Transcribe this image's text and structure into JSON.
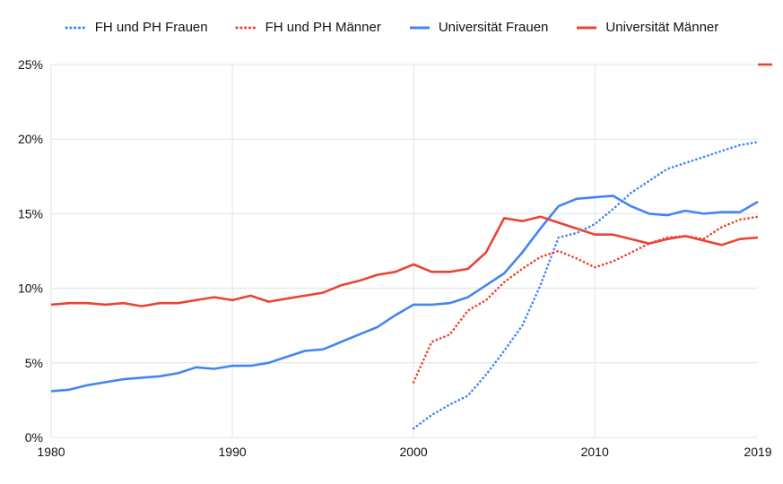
{
  "chart_data": {
    "type": "line",
    "title": "",
    "xlabel": "",
    "ylabel": "",
    "legend_position": "top",
    "grid": true,
    "background": "#ffffff",
    "colors": {
      "blue": "#4285f4",
      "red": "#ea4335",
      "gridline": "#e3e3e3",
      "axis_text": "#111111"
    },
    "x_axis": {
      "range": [
        1980,
        2019
      ],
      "ticks": [
        "1980",
        "1990",
        "2000",
        "2010",
        "2019"
      ],
      "tick_values": [
        1980,
        1990,
        2000,
        2010,
        2019
      ]
    },
    "y_axis": {
      "range": [
        0,
        25
      ],
      "unit": "%",
      "ticks": [
        "0%",
        "5%",
        "10%",
        "15%",
        "20%",
        "25%"
      ],
      "tick_values": [
        0,
        5,
        10,
        15,
        20,
        25
      ]
    },
    "vertical_gridline_years": [
      1990,
      2000,
      2010
    ],
    "series": [
      {
        "id": "fh-und-ph-frauen",
        "name": "FH und PH Frauen",
        "color": "#4285f4",
        "style": "dotted",
        "x_start": 2000,
        "x_step": 1,
        "values": [
          0.6,
          1.5,
          2.2,
          2.8,
          4.2,
          5.8,
          7.5,
          10.2,
          13.4,
          13.7,
          14.3,
          15.3,
          16.4,
          17.2,
          18.0,
          18.4,
          18.8,
          19.2,
          19.6,
          19.8
        ]
      },
      {
        "id": "fh-und-ph-maenner",
        "name": "FH und PH Männer",
        "color": "#ea4335",
        "style": "dotted",
        "x_start": 2000,
        "x_step": 1,
        "values": [
          3.7,
          6.4,
          6.9,
          8.5,
          9.2,
          10.4,
          11.3,
          12.1,
          12.5,
          12.0,
          11.4,
          11.8,
          12.4,
          13.0,
          13.4,
          13.5,
          13.3,
          14.1,
          14.6,
          14.8
        ]
      },
      {
        "id": "universitaet-frauen",
        "name": "Universität Frauen",
        "color": "#4285f4",
        "style": "solid",
        "x_start": 1980,
        "x_step": 1,
        "values": [
          3.1,
          3.2,
          3.5,
          3.7,
          3.9,
          4.0,
          4.1,
          4.3,
          4.7,
          4.6,
          4.8,
          4.8,
          5.0,
          5.4,
          5.8,
          5.9,
          6.4,
          6.9,
          7.4,
          8.2,
          8.9,
          8.9,
          9.0,
          9.4,
          10.2,
          11.0,
          12.4,
          14.0,
          15.5,
          16.0,
          16.1,
          16.2,
          15.5,
          15.0,
          14.9,
          15.2,
          15.0,
          15.1,
          15.1,
          15.8
        ]
      },
      {
        "id": "universitaet-maenner",
        "name": "Universität Männer",
        "color": "#ea4335",
        "style": "solid",
        "x_start": 1980,
        "x_step": 1,
        "values": [
          8.9,
          9.0,
          9.0,
          8.9,
          9.0,
          8.8,
          9.0,
          9.0,
          9.2,
          9.4,
          9.2,
          9.5,
          9.1,
          9.3,
          9.5,
          9.7,
          10.2,
          10.5,
          10.9,
          11.1,
          11.6,
          11.1,
          11.1,
          11.3,
          12.4,
          14.7,
          14.5,
          14.8,
          14.4,
          14.0,
          13.6,
          13.6,
          13.3,
          13.0,
          13.3,
          13.5,
          13.2,
          12.9,
          13.3,
          13.4
        ]
      }
    ],
    "stray_mark": {
      "description": "short red dash at right edge on the 25% gridline",
      "value": 25,
      "color": "#ea4335"
    }
  }
}
